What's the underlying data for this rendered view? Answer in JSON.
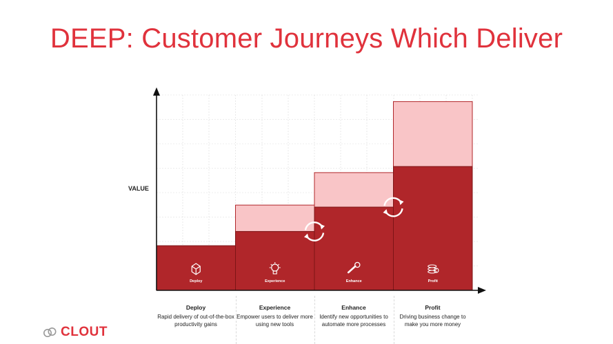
{
  "title": "DEEP: Customer Journeys Which Deliver",
  "y_axis_label": "VALUE",
  "colors": {
    "title": "#e0323c",
    "dark_red": "#b0262a",
    "light_red": "#f9c5c7",
    "brand": "#e0323c"
  },
  "stages": [
    {
      "name": "Deploy",
      "icon": "box-icon",
      "description": "Rapid delivery of out-of-the-box productivity gains",
      "base_level": 0.22,
      "top_level": 0.22,
      "has_cycle_icon": false
    },
    {
      "name": "Experience",
      "icon": "lightbulb-icon",
      "description": "Empower users to deliver more using new tools",
      "base_level": 0.29,
      "top_level": 0.42,
      "has_cycle_icon": true
    },
    {
      "name": "Enhance",
      "icon": "wrench-icon",
      "description": "Identify new opportunities to automate more processes",
      "base_level": 0.41,
      "top_level": 0.58,
      "has_cycle_icon": true
    },
    {
      "name": "Profit",
      "icon": "coins-icon",
      "description": "Driving business change to make you more money",
      "base_level": 0.61,
      "top_level": 0.93,
      "has_cycle_icon": false
    }
  ],
  "brand": {
    "name": "CLOUT",
    "icon": "cloud-logo-icon"
  }
}
